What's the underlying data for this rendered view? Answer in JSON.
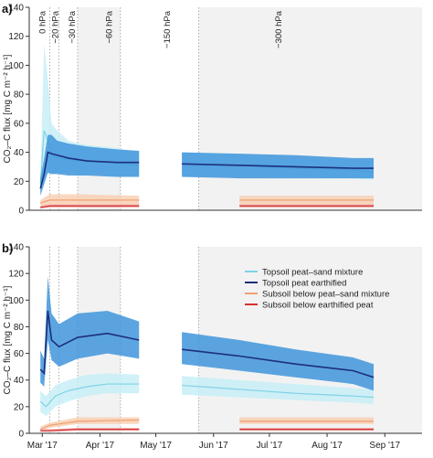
{
  "chart_data": [
    {
      "type": "line",
      "panel_label": "a)",
      "ylabel": "CO₂–C flux [mg C m⁻² h⁻¹]",
      "ylim": [
        0,
        140
      ],
      "yticks": [
        0,
        20,
        40,
        60,
        80,
        100,
        120,
        140
      ],
      "xlim": [
        "2017-02-22",
        "2017-09-21"
      ],
      "grid": false,
      "phase_labels": [
        {
          "label": "0 hPa",
          "date": "2017-03-01"
        },
        {
          "label": "−20 hPa",
          "date": "2017-03-08"
        },
        {
          "label": "−30 hPa",
          "date": "2017-03-17"
        },
        {
          "label": "−60 hPa",
          "date": "2017-04-06"
        },
        {
          "label": "−150 hPa",
          "date": "2017-05-07"
        },
        {
          "label": "−300 hPa",
          "date": "2017-07-06"
        }
      ],
      "phase_boundaries": [
        "2017-03-05",
        "2017-03-10",
        "2017-03-20",
        "2017-04-12",
        "2017-05-24"
      ],
      "shaded_periods": [
        [
          "2017-03-20",
          "2017-04-12"
        ],
        [
          "2017-05-24",
          "2017-09-21"
        ]
      ],
      "measurement_gaps": [
        [
          "2017-04-22",
          "2017-04-28"
        ],
        [
          "2017-08-26",
          "2017-08-29"
        ]
      ],
      "series": [
        {
          "name": "Topsoil peat–sand mixture",
          "color": "#7fd3e6",
          "band_color": "#c8eef7",
          "x": [
            "2017-02-28",
            "2017-03-02",
            "2017-03-04",
            "2017-03-06",
            "2017-03-09",
            "2017-03-15",
            "2017-03-25",
            "2017-04-10",
            "2017-04-22",
            "2017-05-15",
            "2017-06-15",
            "2017-07-15",
            "2017-08-15",
            "2017-08-26",
            "2017-09-17"
          ],
          "values": [
            18,
            55,
            48,
            38,
            36,
            35,
            34,
            33,
            31,
            31,
            31,
            29,
            28,
            26,
            27
          ],
          "lower": [
            12,
            25,
            25,
            25,
            26,
            26,
            26,
            24,
            23,
            23,
            24,
            23,
            22,
            21,
            21
          ],
          "upper": [
            24,
            115,
            90,
            60,
            55,
            48,
            45,
            43,
            40,
            40,
            39,
            36,
            35,
            34,
            34
          ]
        },
        {
          "name": "Topsoil peat earthified",
          "color": "#1d2f7a",
          "band_color": "#3f95dc",
          "x": [
            "2017-02-28",
            "2017-03-02",
            "2017-03-04",
            "2017-03-06",
            "2017-03-09",
            "2017-03-15",
            "2017-03-25",
            "2017-04-10",
            "2017-04-22",
            "2017-05-15",
            "2017-06-15",
            "2017-07-15",
            "2017-08-15",
            "2017-08-26",
            "2017-09-17"
          ],
          "values": [
            15,
            25,
            40,
            39,
            38,
            36,
            34,
            33,
            33,
            32,
            31,
            30,
            29,
            29,
            29
          ],
          "lower": [
            10,
            18,
            26,
            25,
            25,
            24,
            24,
            23,
            23,
            23,
            22,
            22,
            22,
            22,
            22
          ],
          "upper": [
            22,
            36,
            52,
            52,
            48,
            46,
            44,
            42,
            41,
            40,
            39,
            38,
            36,
            36,
            36
          ]
        },
        {
          "name": "Subsoil below peat–sand mixture",
          "color": "#f0a070",
          "band_color": "#f8d0b4",
          "x": [
            "2017-02-28",
            "2017-03-05",
            "2017-03-20",
            "2017-04-22",
            "2017-06-15",
            "2017-08-26",
            "2017-09-17"
          ],
          "values": [
            5,
            7,
            7,
            7,
            7,
            7,
            7
          ],
          "lower": [
            3,
            4,
            4,
            4,
            4,
            4,
            4
          ],
          "upper": [
            7,
            11,
            11,
            10,
            10,
            10,
            10
          ]
        },
        {
          "name": "Subsoil below earthified peat",
          "color": "#d83030",
          "band_color": "#eda0a0",
          "x": [
            "2017-02-28",
            "2017-03-05",
            "2017-03-20",
            "2017-04-22",
            "2017-06-15",
            "2017-08-26",
            "2017-09-17"
          ],
          "values": [
            2,
            3,
            3,
            3,
            3,
            3,
            3
          ],
          "lower": [
            1,
            2,
            2,
            2,
            2,
            2,
            2
          ],
          "upper": [
            3,
            4,
            4,
            4,
            4,
            4,
            4
          ]
        }
      ]
    },
    {
      "type": "line",
      "panel_label": "b)",
      "ylabel": "CO₂–C flux [mg C m⁻² h⁻¹]",
      "ylim": [
        0,
        140
      ],
      "yticks": [
        0,
        20,
        40,
        60,
        80,
        100,
        120,
        140
      ],
      "xlim": [
        "2017-02-22",
        "2017-09-21"
      ],
      "xticks": [
        {
          "label": "Mar '17",
          "date": "2017-03-01"
        },
        {
          "label": "Apr '17",
          "date": "2017-04-01"
        },
        {
          "label": "May '17",
          "date": "2017-05-01"
        },
        {
          "label": "Jun '17",
          "date": "2017-06-01"
        },
        {
          "label": "Jul '17",
          "date": "2017-07-01"
        },
        {
          "label": "Aug '17",
          "date": "2017-08-01"
        },
        {
          "label": "Sep '17",
          "date": "2017-09-01"
        }
      ],
      "grid": false,
      "legend_position": "top-right",
      "phase_boundaries": [
        "2017-03-05",
        "2017-03-10",
        "2017-03-20",
        "2017-04-12",
        "2017-05-24"
      ],
      "shaded_periods": [
        [
          "2017-03-20",
          "2017-04-12"
        ],
        [
          "2017-05-24",
          "2017-09-21"
        ]
      ],
      "measurement_gaps": [
        [
          "2017-04-22",
          "2017-04-28"
        ],
        [
          "2017-08-26",
          "2017-08-29"
        ]
      ],
      "series": [
        {
          "name": "Topsoil peat–sand mixture",
          "color": "#7fd3e6",
          "band_color": "#c8eef7",
          "x": [
            "2017-02-28",
            "2017-03-03",
            "2017-03-08",
            "2017-03-15",
            "2017-03-25",
            "2017-04-05",
            "2017-04-22",
            "2017-05-15",
            "2017-06-15",
            "2017-07-15",
            "2017-08-15",
            "2017-08-26",
            "2017-09-17"
          ],
          "values": [
            24,
            20,
            28,
            32,
            35,
            37,
            37,
            36,
            33,
            30,
            28,
            27,
            27
          ],
          "lower": [
            16,
            13,
            20,
            24,
            28,
            30,
            30,
            29,
            27,
            25,
            23,
            22,
            22
          ],
          "upper": [
            32,
            28,
            36,
            40,
            44,
            45,
            44,
            43,
            40,
            37,
            34,
            33,
            33
          ]
        },
        {
          "name": "Topsoil peat earthified",
          "color": "#1d2f7a",
          "band_color": "#3f95dc",
          "x": [
            "2017-02-28",
            "2017-03-02",
            "2017-03-04",
            "2017-03-06",
            "2017-03-10",
            "2017-03-20",
            "2017-04-05",
            "2017-04-22",
            "2017-05-15",
            "2017-06-15",
            "2017-07-15",
            "2017-08-15",
            "2017-08-26",
            "2017-09-17"
          ],
          "values": [
            48,
            45,
            92,
            70,
            65,
            72,
            75,
            70,
            63,
            58,
            52,
            47,
            42,
            38
          ],
          "lower": [
            38,
            35,
            70,
            55,
            50,
            56,
            60,
            56,
            52,
            47,
            42,
            37,
            32,
            28
          ],
          "upper": [
            62,
            56,
            118,
            90,
            82,
            90,
            92,
            84,
            76,
            70,
            63,
            57,
            52,
            50
          ]
        },
        {
          "name": "Subsoil below peat–sand mixture",
          "color": "#f0a070",
          "band_color": "#f8d0b4",
          "x": [
            "2017-02-28",
            "2017-03-05",
            "2017-03-20",
            "2017-04-22",
            "2017-06-15",
            "2017-08-26",
            "2017-09-17"
          ],
          "values": [
            3,
            6,
            9,
            10,
            9,
            9,
            9
          ],
          "lower": [
            2,
            4,
            7,
            7,
            7,
            7,
            7
          ],
          "upper": [
            5,
            8,
            12,
            12,
            12,
            12,
            12
          ]
        },
        {
          "name": "Subsoil below earthified peat",
          "color": "#d83030",
          "band_color": "#eda0a0",
          "x": [
            "2017-02-28",
            "2017-03-05",
            "2017-03-20",
            "2017-04-22",
            "2017-06-15",
            "2017-08-26",
            "2017-09-17"
          ],
          "values": [
            2,
            2,
            3,
            3,
            3,
            3,
            3
          ],
          "lower": [
            1,
            1,
            2,
            2,
            2,
            2,
            2
          ],
          "upper": [
            3,
            3,
            4,
            4,
            4,
            4,
            4
          ]
        }
      ]
    }
  ]
}
